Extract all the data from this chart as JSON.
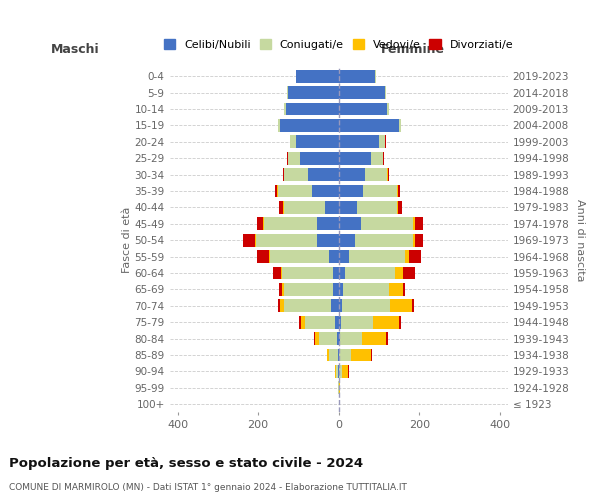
{
  "age_groups": [
    "100+",
    "95-99",
    "90-94",
    "85-89",
    "80-84",
    "75-79",
    "70-74",
    "65-69",
    "60-64",
    "55-59",
    "50-54",
    "45-49",
    "40-44",
    "35-39",
    "30-34",
    "25-29",
    "20-24",
    "15-19",
    "10-14",
    "5-9",
    "0-4"
  ],
  "birth_years": [
    "≤ 1923",
    "1924-1928",
    "1929-1933",
    "1934-1938",
    "1939-1943",
    "1944-1948",
    "1949-1953",
    "1954-1958",
    "1959-1963",
    "1964-1968",
    "1969-1973",
    "1974-1978",
    "1979-1983",
    "1984-1988",
    "1989-1993",
    "1994-1998",
    "1999-2003",
    "2004-2008",
    "2009-2013",
    "2014-2018",
    "2019-2023"
  ],
  "male": {
    "celibi": [
      0,
      0,
      1,
      2,
      4,
      8,
      20,
      15,
      15,
      25,
      55,
      55,
      35,
      65,
      75,
      95,
      105,
      145,
      130,
      125,
      105
    ],
    "coniugati": [
      0,
      1,
      5,
      22,
      45,
      75,
      115,
      120,
      125,
      145,
      150,
      130,
      100,
      85,
      60,
      30,
      15,
      5,
      5,
      3,
      0
    ],
    "vedovi": [
      0,
      0,
      2,
      5,
      10,
      10,
      10,
      5,
      3,
      3,
      3,
      2,
      2,
      2,
      1,
      1,
      1,
      0,
      0,
      0,
      0
    ],
    "divorziati": [
      0,
      0,
      0,
      0,
      3,
      5,
      5,
      8,
      20,
      30,
      30,
      15,
      12,
      5,
      3,
      2,
      1,
      0,
      0,
      0,
      0
    ]
  },
  "female": {
    "nubili": [
      0,
      0,
      1,
      2,
      3,
      5,
      8,
      10,
      15,
      25,
      40,
      55,
      45,
      60,
      65,
      80,
      100,
      150,
      120,
      115,
      90
    ],
    "coniugate": [
      0,
      2,
      8,
      28,
      55,
      80,
      120,
      115,
      125,
      140,
      145,
      130,
      100,
      85,
      55,
      30,
      15,
      5,
      5,
      3,
      2
    ],
    "vedove": [
      0,
      2,
      15,
      50,
      60,
      65,
      55,
      35,
      20,
      10,
      5,
      5,
      3,
      2,
      2,
      1,
      1,
      0,
      0,
      0,
      0
    ],
    "divorziate": [
      0,
      0,
      1,
      2,
      5,
      5,
      5,
      5,
      30,
      30,
      20,
      20,
      8,
      5,
      3,
      2,
      1,
      0,
      0,
      0,
      0
    ]
  },
  "colors": {
    "celibi": "#4472c4",
    "coniugati": "#c6d9a0",
    "vedovi": "#ffc000",
    "divorziati": "#cc0000"
  },
  "title": "Popolazione per età, sesso e stato civile - 2024",
  "subtitle": "COMUNE DI MARMIROLO (MN) - Dati ISTAT 1° gennaio 2024 - Elaborazione TUTTITALIA.IT",
  "xlabel_left": "Maschi",
  "xlabel_right": "Femmine",
  "ylabel_left": "Fasce di età",
  "ylabel_right": "Anni di nascita",
  "xlim": 420,
  "bg_color": "#ffffff",
  "grid_color": "#cccccc",
  "legend_labels": [
    "Celibi/Nubili",
    "Coniugati/e",
    "Vedovi/e",
    "Divorziati/e"
  ]
}
